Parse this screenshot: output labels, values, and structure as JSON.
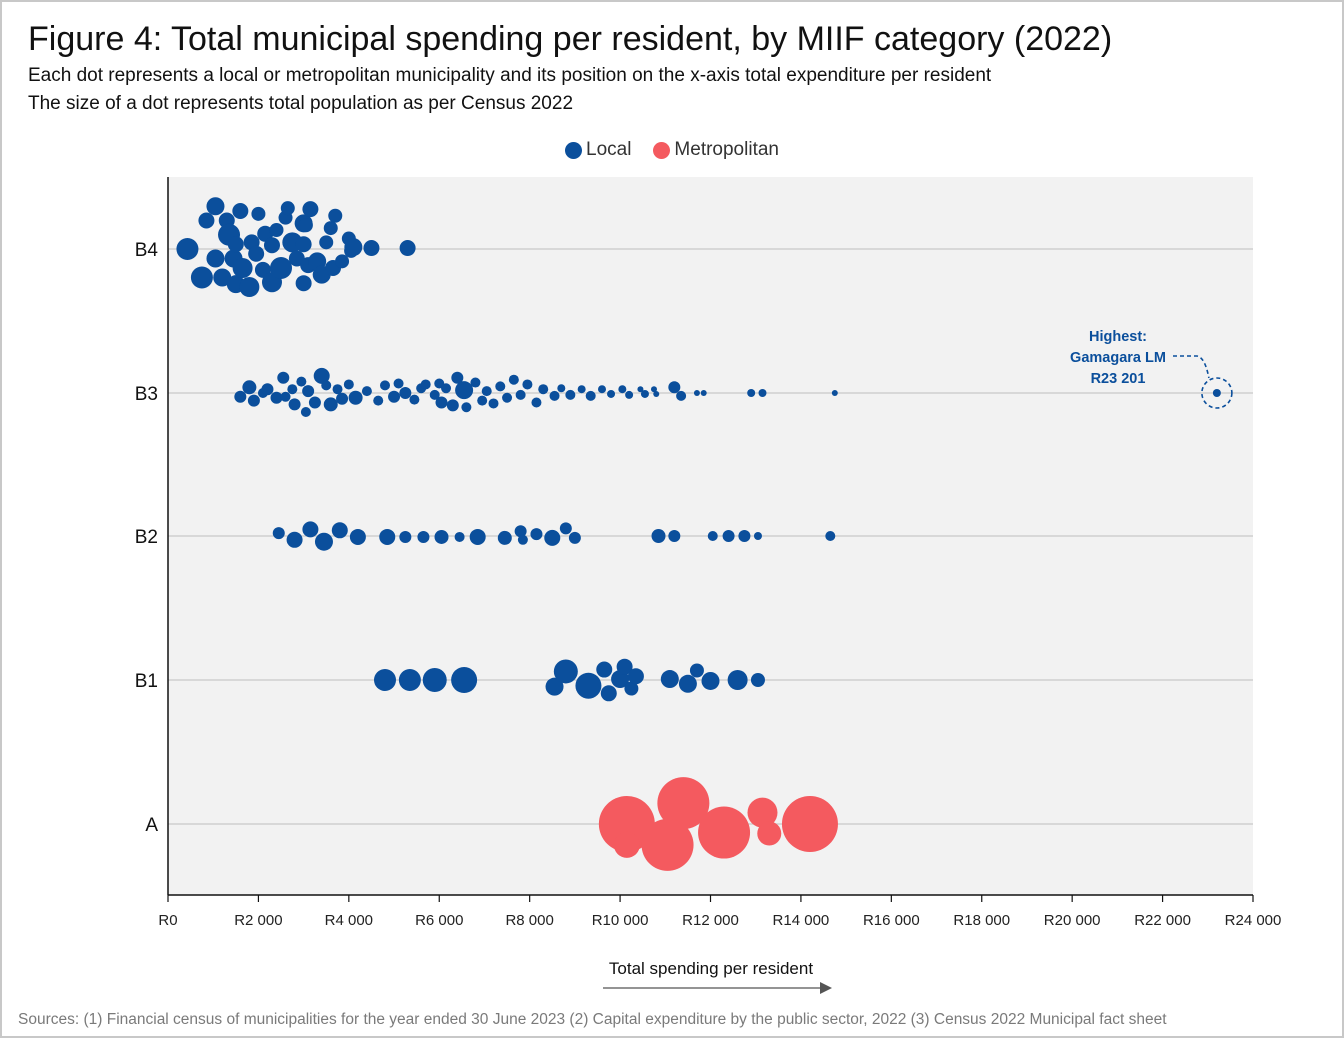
{
  "title": "Figure 4: Total municipal spending per resident, by MIIF category (2022)",
  "subtitle_line1": "Each dot represents a local or metropolitan municipality and its position on the x-axis total expenditure per resident",
  "subtitle_line2": "The size of a dot represents total population as per Census 2022",
  "legend": [
    {
      "label": "Local",
      "color": "#0b4f9c"
    },
    {
      "label": "Metropolitan",
      "color": "#f45a5f"
    }
  ],
  "sources": "Sources: (1) Financial census of municipalities for the year ended 30 June 2023  (2) Capital expenditure by the public sector, 2022  (3) Census 2022 Municipal fact sheet",
  "chart_data": {
    "type": "scatter",
    "subtype": "beeswarm",
    "xlabel": "Total spending per resident",
    "xlim": [
      0,
      24000
    ],
    "x_ticks": [
      0,
      2000,
      4000,
      6000,
      8000,
      10000,
      12000,
      14000,
      16000,
      18000,
      20000,
      22000,
      24000
    ],
    "x_tick_labels": [
      "R0",
      "R2 000",
      "R4 000",
      "R6 000",
      "R8 000",
      "R10 000",
      "R12 000",
      "R14 000",
      "R16 000",
      "R18 000",
      "R20 000",
      "R22 000",
      "R24 000"
    ],
    "categories": [
      "B4",
      "B3",
      "B2",
      "B1",
      "A"
    ],
    "colors": {
      "Local": "#0b4f9c",
      "Metropolitan": "#f45a5f"
    },
    "annotation": {
      "category": "B3",
      "x": 23201,
      "lines": [
        "Highest:",
        "Gamagara LM",
        "R23 201"
      ]
    },
    "series": [
      {
        "category": "B4",
        "group": "Local",
        "points": [
          [
            430,
            0,
            11
          ],
          [
            750,
            -0.3,
            11
          ],
          [
            850,
            0.3,
            8
          ],
          [
            1050,
            -0.1,
            9
          ],
          [
            1050,
            0.45,
            9
          ],
          [
            1200,
            -0.3,
            9
          ],
          [
            1300,
            0.3,
            8
          ],
          [
            1350,
            0.15,
            11
          ],
          [
            1450,
            -0.1,
            9
          ],
          [
            1500,
            -0.37,
            9
          ],
          [
            1500,
            0.05,
            8
          ],
          [
            1600,
            0.4,
            8
          ],
          [
            1650,
            -0.2,
            10
          ],
          [
            1800,
            -0.4,
            10
          ],
          [
            1850,
            0.07,
            8
          ],
          [
            1950,
            -0.05,
            8
          ],
          [
            2000,
            0.37,
            7
          ],
          [
            2100,
            -0.22,
            8
          ],
          [
            2150,
            0.16,
            8
          ],
          [
            2300,
            0.04,
            8
          ],
          [
            2300,
            -0.35,
            10
          ],
          [
            2400,
            0.2,
            7
          ],
          [
            2500,
            -0.2,
            11
          ],
          [
            2600,
            0.33,
            7
          ],
          [
            2650,
            0.43,
            7
          ],
          [
            2750,
            0.07,
            10
          ],
          [
            2850,
            -0.1,
            8
          ],
          [
            3000,
            0.05,
            8
          ],
          [
            3000,
            -0.36,
            8
          ],
          [
            3000,
            0.27,
            9
          ],
          [
            3050,
            0.25,
            7
          ],
          [
            3100,
            -0.17,
            8
          ],
          [
            3150,
            0.42,
            8
          ],
          [
            3300,
            -0.13,
            9
          ],
          [
            3400,
            -0.27,
            9
          ],
          [
            3500,
            0.07,
            7
          ],
          [
            3600,
            0.22,
            7
          ],
          [
            3650,
            -0.2,
            8
          ],
          [
            3700,
            0.35,
            7
          ],
          [
            3850,
            -0.13,
            7
          ],
          [
            4000,
            0.11,
            7
          ],
          [
            4050,
            -0.02,
            7
          ],
          [
            4100,
            0.02,
            9
          ],
          [
            4500,
            0.01,
            8
          ],
          [
            5300,
            0.01,
            8
          ]
        ]
      },
      {
        "category": "B3",
        "group": "Local",
        "points": [
          [
            1600,
            -0.04,
            6
          ],
          [
            1800,
            0.06,
            7
          ],
          [
            1900,
            -0.08,
            6
          ],
          [
            2100,
            0,
            5
          ],
          [
            2200,
            0.04,
            6
          ],
          [
            2400,
            -0.05,
            6
          ],
          [
            2550,
            0.16,
            6
          ],
          [
            2600,
            -0.04,
            5
          ],
          [
            2750,
            0.04,
            5
          ],
          [
            2800,
            -0.12,
            6
          ],
          [
            2950,
            0.12,
            5
          ],
          [
            3050,
            -0.2,
            5
          ],
          [
            3100,
            0.02,
            6
          ],
          [
            3250,
            -0.1,
            6
          ],
          [
            3400,
            0.18,
            8
          ],
          [
            3500,
            0.08,
            5
          ],
          [
            3600,
            -0.12,
            7
          ],
          [
            3750,
            0.04,
            5
          ],
          [
            3850,
            -0.06,
            6
          ],
          [
            4000,
            0.09,
            5
          ],
          [
            4150,
            -0.05,
            7
          ],
          [
            4400,
            0.02,
            5
          ],
          [
            4650,
            -0.08,
            5
          ],
          [
            4800,
            0.08,
            5
          ],
          [
            5000,
            -0.04,
            6
          ],
          [
            5100,
            0.1,
            5
          ],
          [
            5250,
            0,
            6
          ],
          [
            5450,
            -0.07,
            5
          ],
          [
            5600,
            0.05,
            5
          ],
          [
            5700,
            0.09,
            5
          ],
          [
            5900,
            -0.02,
            5
          ],
          [
            6000,
            0.1,
            5
          ],
          [
            6050,
            -0.1,
            6
          ],
          [
            6150,
            0.05,
            5
          ],
          [
            6300,
            -0.13,
            6
          ],
          [
            6400,
            0.16,
            6
          ],
          [
            6550,
            0.03,
            9
          ],
          [
            6600,
            -0.15,
            5
          ],
          [
            6800,
            0.11,
            5
          ],
          [
            6950,
            -0.08,
            5
          ],
          [
            7050,
            0.02,
            5
          ],
          [
            7200,
            -0.11,
            5
          ],
          [
            7350,
            0.07,
            5
          ],
          [
            7500,
            -0.05,
            5
          ],
          [
            7650,
            0.14,
            5
          ],
          [
            7800,
            -0.02,
            5
          ],
          [
            7950,
            0.09,
            5
          ],
          [
            8150,
            -0.1,
            5
          ],
          [
            8300,
            0.04,
            5
          ],
          [
            8550,
            -0.03,
            5
          ],
          [
            8700,
            0.05,
            4
          ],
          [
            8900,
            -0.02,
            5
          ],
          [
            9150,
            0.04,
            4
          ],
          [
            9350,
            -0.03,
            5
          ],
          [
            9600,
            0.04,
            4
          ],
          [
            9800,
            -0.01,
            4
          ],
          [
            10050,
            0.04,
            4
          ],
          [
            10200,
            -0.02,
            4
          ],
          [
            10450,
            0.04,
            3
          ],
          [
            10550,
            -0.01,
            4
          ],
          [
            10750,
            0.04,
            3
          ],
          [
            10800,
            -0.01,
            3
          ],
          [
            11200,
            0.06,
            6
          ],
          [
            11350,
            -0.03,
            5
          ],
          [
            11700,
            0,
            3
          ],
          [
            11850,
            0,
            3
          ],
          [
            12900,
            0,
            4
          ],
          [
            13150,
            0,
            4
          ],
          [
            14750,
            0,
            3
          ]
        ]
      },
      {
        "category": "B3",
        "group": "Local",
        "highlight": true,
        "points": [
          [
            23201,
            0,
            4
          ]
        ]
      },
      {
        "category": "B2",
        "group": "Local",
        "points": [
          [
            2450,
            0.03,
            6
          ],
          [
            2800,
            -0.04,
            8
          ],
          [
            3150,
            0.07,
            8
          ],
          [
            3450,
            -0.06,
            9
          ],
          [
            3800,
            0.06,
            8
          ],
          [
            4200,
            -0.01,
            8
          ],
          [
            4850,
            -0.01,
            8
          ],
          [
            5250,
            -0.01,
            6
          ],
          [
            5650,
            -0.01,
            6
          ],
          [
            6050,
            -0.01,
            7
          ],
          [
            6450,
            -0.01,
            5
          ],
          [
            6850,
            -0.01,
            8
          ],
          [
            7450,
            -0.02,
            7
          ],
          [
            7800,
            0.05,
            6
          ],
          [
            7850,
            -0.04,
            5
          ],
          [
            8150,
            0.02,
            6
          ],
          [
            8500,
            -0.02,
            8
          ],
          [
            8800,
            0.08,
            6
          ],
          [
            9000,
            -0.02,
            6
          ],
          [
            10850,
            0,
            7
          ],
          [
            11200,
            0,
            6
          ],
          [
            12050,
            0,
            5
          ],
          [
            12400,
            0,
            6
          ],
          [
            12750,
            0,
            6
          ],
          [
            13050,
            0,
            4
          ],
          [
            14650,
            0,
            5
          ]
        ]
      },
      {
        "category": "B1",
        "group": "Local",
        "points": [
          [
            4800,
            0,
            11
          ],
          [
            5350,
            0,
            11
          ],
          [
            5900,
            0,
            12
          ],
          [
            6550,
            0,
            13
          ],
          [
            8550,
            -0.07,
            9
          ],
          [
            8800,
            0.09,
            12
          ],
          [
            9300,
            -0.06,
            13
          ],
          [
            9650,
            0.11,
            8
          ],
          [
            9750,
            -0.14,
            8
          ],
          [
            10000,
            0.01,
            9
          ],
          [
            10100,
            0.14,
            8
          ],
          [
            10250,
            -0.09,
            7
          ],
          [
            10350,
            0.04,
            8
          ],
          [
            11100,
            0.01,
            9
          ],
          [
            11500,
            -0.04,
            9
          ],
          [
            11700,
            0.1,
            7
          ],
          [
            12000,
            -0.01,
            9
          ],
          [
            12600,
            0,
            10
          ],
          [
            13050,
            0,
            7
          ]
        ]
      },
      {
        "category": "A",
        "group": "Metropolitan",
        "points": [
          [
            10150,
            0,
            28
          ],
          [
            11400,
            0.22,
            26
          ],
          [
            11050,
            -0.22,
            26
          ],
          [
            12300,
            -0.09,
            26
          ],
          [
            13150,
            0.12,
            15
          ],
          [
            13300,
            -0.1,
            12
          ],
          [
            14200,
            0,
            28
          ],
          [
            10150,
            -0.22,
            13
          ]
        ]
      }
    ]
  }
}
